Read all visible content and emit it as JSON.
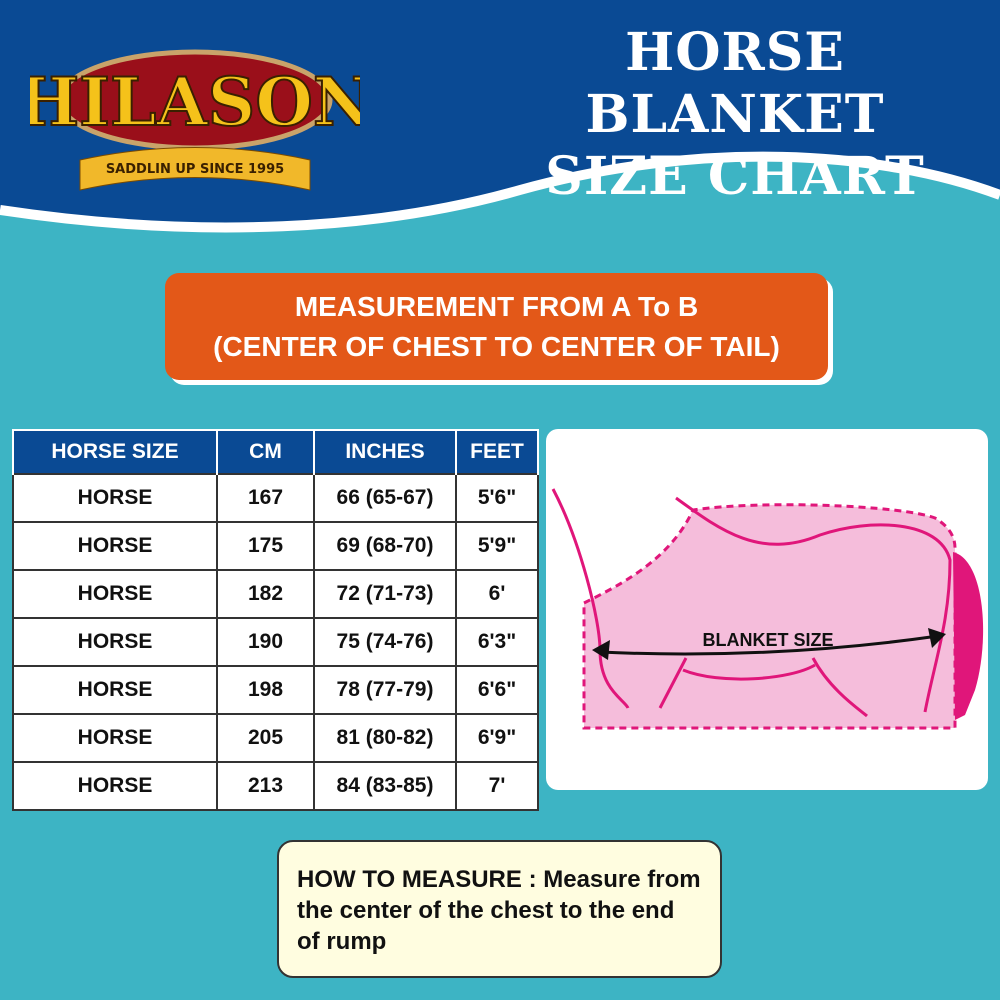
{
  "logo": {
    "brand": "HILASON",
    "tagline": "SADDLIN UP SINCE 1995"
  },
  "title": {
    "line1": "HORSE BLANKET",
    "line2": "SIZE CHART"
  },
  "banner": {
    "line1": "MEASUREMENT FROM A To B",
    "line2": "(CENTER OF CHEST TO CENTER OF TAIL)"
  },
  "table": {
    "headers": [
      "HORSE SIZE",
      "CM",
      "INCHES",
      "FEET"
    ],
    "rows": [
      [
        "HORSE",
        "167",
        "66 (65-67)",
        "5'6\""
      ],
      [
        "HORSE",
        "175",
        "69 (68-70)",
        "5'9\""
      ],
      [
        "HORSE",
        "182",
        "72 (71-73)",
        "6'"
      ],
      [
        "HORSE",
        "190",
        "75 (74-76)",
        "6'3\""
      ],
      [
        "HORSE",
        "198",
        "78 (77-79)",
        "6'6\""
      ],
      [
        "HORSE",
        "205",
        "81 (80-82)",
        "6'9\""
      ],
      [
        "HORSE",
        "213",
        "84 (83-85)",
        "7'"
      ]
    ]
  },
  "diagram": {
    "label": "BLANKET SIZE"
  },
  "how_to_measure": {
    "text": "HOW TO MEASURE : Measure from the center of the chest to the end of rump"
  },
  "colors": {
    "header_blue": "#0a4a94",
    "teal": "#3db4c4",
    "orange": "#e35818",
    "pink": "#f5bddb",
    "magenta": "#e0167a"
  }
}
